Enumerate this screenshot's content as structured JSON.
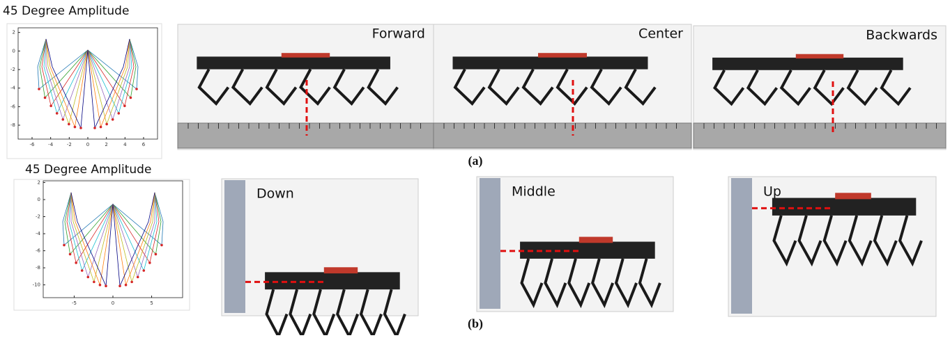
{
  "panel_a": {
    "plot": {
      "title": "45 Degree Amplitude",
      "xlim": [
        -7.5,
        7.5
      ],
      "ylim": [
        -9.5,
        2.5
      ],
      "xticks": [
        -6,
        -4,
        -2,
        0,
        2,
        4,
        6
      ],
      "yticks": [
        2,
        0,
        -2,
        -4,
        -6,
        -8
      ]
    },
    "photos": [
      {
        "label": "Forward"
      },
      {
        "label": "Center"
      },
      {
        "label": "Backwards"
      }
    ],
    "caption": "(a)"
  },
  "panel_b": {
    "plot": {
      "title": "45 Degree Amplitude",
      "xlim": [
        -9,
        9
      ],
      "ylim": [
        -11.5,
        2.2
      ],
      "xticks": [
        -5,
        0,
        5
      ],
      "yticks": [
        2,
        0,
        -2,
        -4,
        -6,
        -8,
        -10
      ]
    },
    "photos": [
      {
        "label": "Down"
      },
      {
        "label": "Middle"
      },
      {
        "label": "Up"
      }
    ],
    "caption": "(b)"
  }
}
